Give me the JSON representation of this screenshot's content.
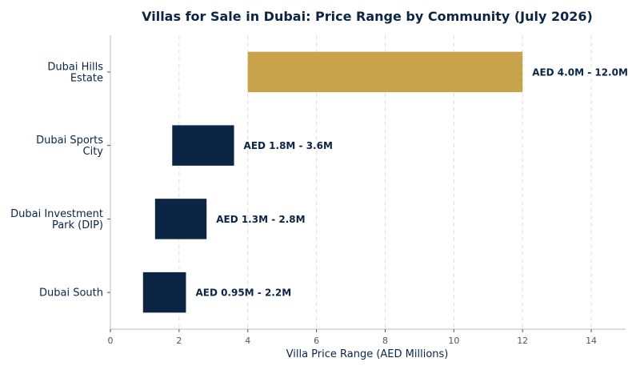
{
  "chart_data": {
    "type": "bar",
    "orientation": "horizontal",
    "title": "Villas for Sale in Dubai: Price Range by Community (July 2026)",
    "xlabel": "Villa Price Range (AED Millions)",
    "ylabel": "",
    "xlim": [
      0,
      15
    ],
    "xticks": [
      0,
      2,
      4,
      6,
      8,
      10,
      12,
      14
    ],
    "grid": "x-dashed",
    "categories": [
      [
        "Dubai Hills",
        "Estate"
      ],
      [
        "Dubai Sports",
        "City"
      ],
      [
        "Dubai Investment",
        "Park (DIP)"
      ],
      [
        "Dubai South"
      ]
    ],
    "ranges": [
      {
        "min": 4.0,
        "max": 12.0,
        "label": "AED 4.0M - 12.0M",
        "color": "#c9a24c"
      },
      {
        "min": 1.8,
        "max": 3.6,
        "label": "AED 1.8M - 3.6M",
        "color": "#0b2545"
      },
      {
        "min": 1.3,
        "max": 2.8,
        "label": "AED 1.3M - 2.8M",
        "color": "#0b2545"
      },
      {
        "min": 0.95,
        "max": 2.2,
        "label": "AED 0.95M - 2.2M",
        "color": "#0b2545"
      }
    ]
  }
}
